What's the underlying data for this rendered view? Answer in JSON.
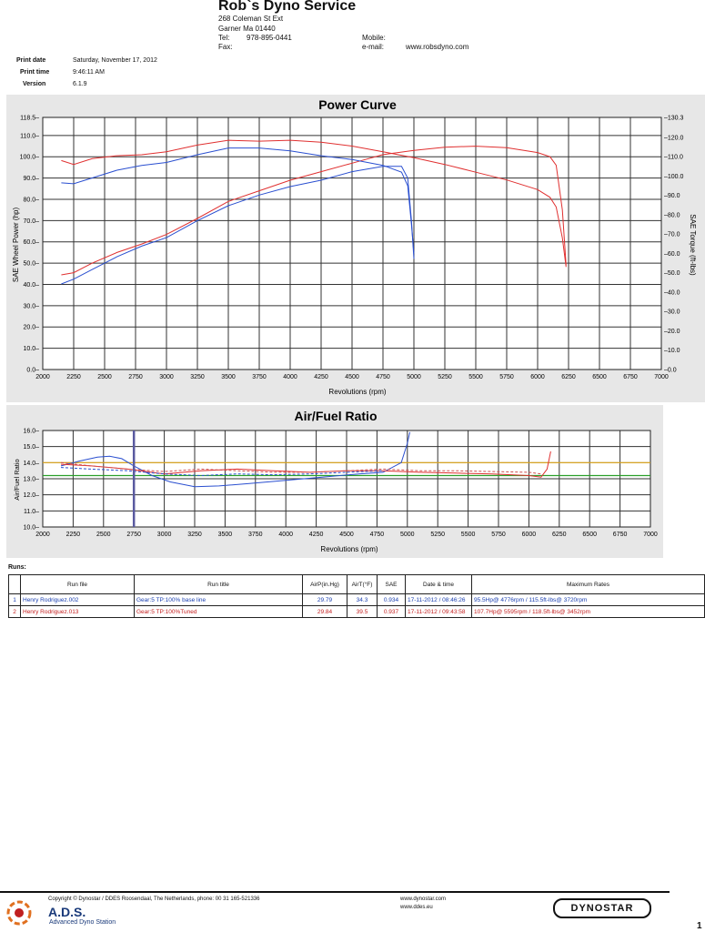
{
  "header": {
    "company": "Rob`s Dyno Service",
    "address1": "268 Coleman St Ext",
    "address2": "Garner Ma 01440",
    "tel_label": "Tel:",
    "tel": "978-895-0441",
    "fax_label": "Fax:",
    "mobile_label": "Mobile:",
    "email_label": "e-mail:",
    "email": "www.robsdyno.com"
  },
  "info": {
    "print_date_label": "Print date",
    "print_date": "Saturday, November 17, 2012",
    "print_time_label": "Print time",
    "print_time": "9:46:11 AM",
    "version_label": "Version",
    "version": "6.1.9"
  },
  "chart_data": [
    {
      "type": "line",
      "title": "Power Curve",
      "xlabel": "Revolutions (rpm)",
      "ylabel": "SAE Wheel Power (hp)",
      "y2label": "SAE Torque (ft-lbs)",
      "xlim": [
        2000,
        7000
      ],
      "ylim": [
        0,
        118.5
      ],
      "y2lim": [
        0,
        130.3
      ],
      "x_ticks": [
        2000,
        2250,
        2500,
        2750,
        3000,
        3250,
        3500,
        3750,
        4000,
        4250,
        4500,
        4750,
        5000,
        5250,
        5500,
        5750,
        6000,
        6250,
        6500,
        6750,
        7000
      ],
      "y_ticks": [
        "0.0",
        "10.0",
        "20.0",
        "30.0",
        "40.0",
        "50.0",
        "60.0",
        "70.0",
        "80.0",
        "90.0",
        "100.0",
        "110.0",
        "118.5"
      ],
      "y2_ticks": [
        "0.0",
        "10.0",
        "20.0",
        "30.0",
        "40.0",
        "50.0",
        "60.0",
        "70.0",
        "80.0",
        "90.0",
        "100.0",
        "110.0",
        "120.0",
        "130.3"
      ],
      "grid": true,
      "series": [
        {
          "color": "#2a4fd0",
          "axis": "left",
          "x": [
            2150,
            2250,
            2400,
            2600,
            2800,
            3000,
            3250,
            3500,
            3750,
            4000,
            4250,
            4500,
            4750,
            4900,
            4950,
            4980,
            5000
          ],
          "y": [
            40.2,
            42.5,
            47,
            53,
            58,
            62,
            70,
            77,
            82,
            86,
            89,
            93,
            95.5,
            95.5,
            90,
            70,
            52
          ]
        },
        {
          "color": "#e03030",
          "axis": "left",
          "x": [
            2150,
            2250,
            2400,
            2600,
            2800,
            3000,
            3250,
            3500,
            3750,
            4000,
            4250,
            4500,
            4750,
            5000,
            5250,
            5500,
            5750,
            6000,
            6100,
            6150,
            6200,
            6230
          ],
          "y": [
            44.5,
            45.5,
            50,
            55,
            59,
            63.5,
            71,
            79,
            84,
            89,
            93,
            97,
            101,
            103,
            104.5,
            105,
            104.3,
            102,
            100,
            96,
            75,
            49
          ]
        },
        {
          "color": "#2a4fd0",
          "axis": "right",
          "x": [
            2150,
            2250,
            2400,
            2600,
            2800,
            3000,
            3250,
            3500,
            3750,
            4000,
            4250,
            4500,
            4750,
            4900,
            4950,
            4980,
            5000
          ],
          "y": [
            96.5,
            96,
            99,
            103,
            105.5,
            107,
            111,
            114.5,
            114.5,
            113,
            110.5,
            108.5,
            105.5,
            102,
            95,
            75,
            60
          ]
        },
        {
          "color": "#e03030",
          "axis": "right",
          "x": [
            2150,
            2250,
            2400,
            2600,
            2800,
            3000,
            3250,
            3500,
            3750,
            4000,
            4250,
            4500,
            4750,
            5000,
            5250,
            5500,
            5750,
            6000,
            6100,
            6150,
            6200,
            6230
          ],
          "y": [
            108,
            106,
            109,
            110.5,
            111,
            112.5,
            116,
            118.5,
            118,
            118.5,
            117.5,
            115.5,
            112.5,
            109.5,
            106,
            102,
            98,
            93,
            89,
            84,
            68,
            53
          ]
        }
      ]
    },
    {
      "type": "line",
      "title": "Air/Fuel Ratio",
      "xlabel": "Revolutions (rpm)",
      "ylabel": "Air/Fuel Ratio",
      "xlim": [
        2000,
        7000
      ],
      "ylim": [
        10,
        16
      ],
      "x_ticks": [
        2000,
        2250,
        2500,
        2750,
        3000,
        3250,
        3500,
        3750,
        4000,
        4250,
        4500,
        4750,
        5000,
        5250,
        5500,
        5750,
        6000,
        6250,
        6500,
        6750,
        7000
      ],
      "y_ticks": [
        "10.0",
        "11.0",
        "12.0",
        "13.0",
        "14.0",
        "15.0",
        "16.0"
      ],
      "grid": true,
      "reference_lines": [
        {
          "y": 14.0,
          "color": "#e8b020"
        },
        {
          "y": 13.2,
          "color": "#2aa02a"
        }
      ],
      "series": [
        {
          "color": "#2a4fd0",
          "x": [
            2150,
            2300,
            2450,
            2550,
            2650,
            2750,
            2900,
            3050,
            3250,
            3450,
            3700,
            4000,
            4300,
            4600,
            4800,
            4950,
            5000,
            5020
          ],
          "y": [
            13.8,
            14.1,
            14.35,
            14.4,
            14.25,
            13.8,
            13.2,
            12.8,
            12.5,
            12.55,
            12.7,
            12.9,
            13.1,
            13.3,
            13.4,
            14.0,
            15.2,
            15.9
          ]
        },
        {
          "color": "#e03030",
          "x": [
            2150,
            2400,
            2700,
            3000,
            3300,
            3600,
            3900,
            4200,
            4500,
            4800,
            5100,
            5400,
            5700,
            6000,
            6100,
            6150,
            6180
          ],
          "y": [
            13.9,
            13.8,
            13.6,
            13.3,
            13.5,
            13.6,
            13.5,
            13.4,
            13.5,
            13.5,
            13.4,
            13.35,
            13.3,
            13.2,
            13.1,
            13.6,
            14.7
          ]
        },
        {
          "color": "#d05050",
          "dashed": true,
          "x": [
            2150,
            2400,
            2700,
            3000,
            3300,
            3600,
            3900,
            4200,
            4500,
            4800,
            5100,
            5400,
            5700,
            6000,
            6100
          ],
          "y": [
            14.0,
            13.8,
            13.6,
            13.45,
            13.6,
            13.5,
            13.4,
            13.4,
            13.5,
            13.6,
            13.5,
            13.5,
            13.45,
            13.4,
            13.3
          ]
        },
        {
          "color": "#2a4fd0",
          "dashed": true,
          "x": [
            2150,
            2400,
            2700,
            3000,
            3300,
            3600,
            3900,
            4200,
            4500,
            4800
          ],
          "y": [
            13.7,
            13.6,
            13.5,
            13.3,
            13.2,
            13.3,
            13.25,
            13.3,
            13.4,
            13.5
          ]
        }
      ]
    }
  ],
  "runs": {
    "label": "Runs:",
    "headers": [
      "",
      "Run file",
      "Run title",
      "AirP(in.Hg)",
      "AirT(°F)",
      "SAE",
      "Date & time",
      "Maximum Rates"
    ],
    "rows": [
      {
        "n": "1",
        "file": "Henry Rodriguez.002",
        "title": "Gear:5 TP:100%  base line",
        "airp": "29.79",
        "airt": "34.3",
        "sae": "0.934",
        "date": "17-11-2012 / 08:46:26",
        "max": "95.5Hp@ 4776rpm / 115.5ft-lbs@ 3720rpm"
      },
      {
        "n": "2",
        "file": "Henry Rodriguez.013",
        "title": "Gear:5 TP:100%Tuned",
        "airp": "29.84",
        "airt": "39.5",
        "sae": "0.937",
        "date": "17-11-2012 / 09:43:58",
        "max": "107.7Hp@ 5595rpm / 118.5ft-lbs@ 3452rpm"
      }
    ]
  },
  "footer": {
    "copyright": "Copyright © Dynostar / DDES  Roosendaal, The Netherlands, phone: 00 31 165-521336",
    "web1": "www.dynostar.com",
    "web2": "www.ddes.eu",
    "ads": "A.D.S.",
    "ads_sub": "Advanced Dyno Station",
    "brand": "DYNOSTAR",
    "page": "1"
  }
}
